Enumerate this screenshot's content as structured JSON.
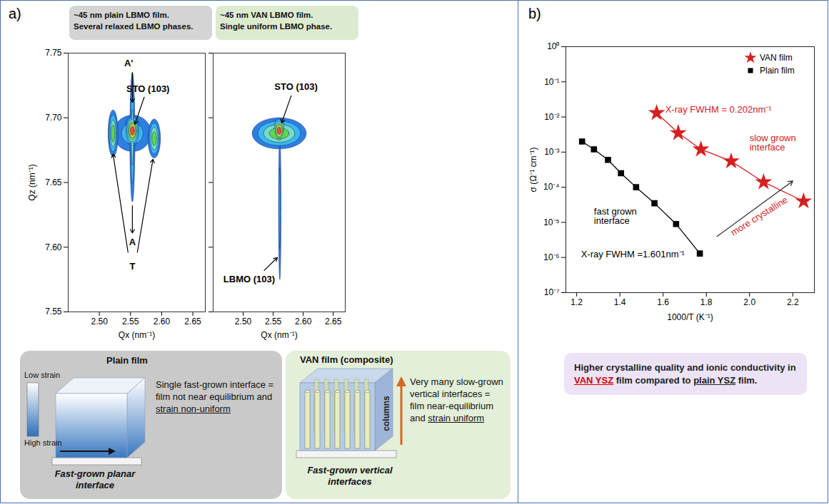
{
  "chart_data": [
    {
      "type": "contour",
      "title": "~45 nm plain LBMO film.",
      "subtitle": "Several relaxed LBMO phases.",
      "x_label": "Qx (nm⁻¹)",
      "y_label": "Qz (nm⁻¹)",
      "xlim": [
        2.45,
        2.67
      ],
      "ylim": [
        7.55,
        7.75
      ],
      "xticks": [
        {
          "value": 2.5,
          "label": "2.50"
        },
        2.55,
        {
          "value": 2.6,
          "label": "2.60"
        },
        2.65
      ],
      "yticks": [
        7.55,
        {
          "value": 7.6,
          "label": "7.60"
        },
        7.65,
        {
          "value": 7.7,
          "label": "7.70"
        },
        7.75
      ],
      "colors": [
        "#2e7fe0",
        "#3bb8ef",
        "#79dcc0",
        "#62d64e",
        "#d9e040",
        "#e8502e"
      ],
      "peaks": [
        {
          "x": 2.553,
          "y": 7.688,
          "rx": 0.03,
          "ry": 0.014,
          "level": 2
        },
        {
          "x": 2.553,
          "y": 7.685,
          "rx": 0.004,
          "ry": 0.05,
          "level": 3
        },
        {
          "x": 2.522,
          "y": 7.688,
          "rx": 0.008,
          "ry": 0.018,
          "level": 4
        },
        {
          "x": 2.588,
          "y": 7.684,
          "rx": 0.01,
          "ry": 0.015,
          "level": 4
        },
        {
          "x": 2.553,
          "y": 7.69,
          "rx": 0.012,
          "ry": 0.012,
          "level": 6
        }
      ],
      "annotations": [
        {
          "text": "A'",
          "x": 2.547,
          "y": 7.742,
          "arrows": [
            [
              2.553,
              7.735,
              2.553,
              7.712
            ]
          ]
        },
        {
          "text": "STO (103)",
          "x": 2.578,
          "y": 7.722,
          "arrows": [
            [
              2.572,
              7.716,
              2.557,
              7.695
            ]
          ]
        },
        {
          "text": "A",
          "x": 2.553,
          "y": 7.604,
          "arrows": [
            [
              2.553,
              7.632,
              2.553,
              7.611
            ]
          ]
        },
        {
          "text": "T",
          "x": 2.553,
          "y": 7.585,
          "arrows": [
            [
              2.546,
              7.596,
              2.522,
              7.672
            ],
            [
              2.561,
              7.596,
              2.586,
              7.668
            ]
          ]
        }
      ]
    },
    {
      "type": "contour",
      "title": "~45 nm VAN LBMO film.",
      "subtitle": "Single uniform LBMO phase.",
      "x_label": "Qx (nm⁻¹)",
      "xlim": [
        2.45,
        2.67
      ],
      "ylim": [
        7.55,
        7.75
      ],
      "xticks": [
        {
          "value": 2.5,
          "label": "2.50"
        },
        2.55,
        {
          "value": 2.6,
          "label": "2.60"
        },
        2.65
      ],
      "yticks": [
        7.55,
        {
          "value": 7.6,
          "label": "7.60"
        },
        7.65,
        {
          "value": 7.7,
          "label": "7.70"
        },
        7.75
      ],
      "tick_labels": "x",
      "colors": [
        "#2e7fe0",
        "#3bb8ef",
        "#79dcc0",
        "#62d64e",
        "#d9e040",
        "#e8502e"
      ],
      "peaks": [
        {
          "x": 2.56,
          "y": 7.688,
          "rx": 0.045,
          "ry": 0.012,
          "level": 4
        },
        {
          "x": 2.561,
          "y": 7.63,
          "rx": 0.002,
          "ry": 0.055,
          "level": 2
        },
        {
          "x": 2.56,
          "y": 7.69,
          "rx": 0.012,
          "ry": 0.01,
          "level": 6
        }
      ],
      "annotations": [
        {
          "text": "STO (103)",
          "x": 2.588,
          "y": 7.724,
          "arrows": [
            [
              2.58,
              7.717,
              2.564,
              7.696
            ]
          ]
        },
        {
          "text": "LBMO (103)",
          "x": 2.51,
          "y": 7.575,
          "arrows": [
            [
              2.535,
              7.582,
              2.557,
              7.592
            ]
          ]
        }
      ]
    },
    {
      "type": "line",
      "x_label": "1000/T (K⁻¹)",
      "y_label": "σ (Ω⁻¹ cm⁻¹)",
      "log": "y",
      "xlim": [
        1.15,
        2.3
      ],
      "ylim": [
        1e-07,
        1
      ],
      "xticks": [
        1.2,
        1.4,
        1.6,
        1.8,
        {
          "value": 2,
          "label": "2.0"
        },
        2.2
      ],
      "yticks": [
        {
          "value": 1e-07,
          "label": "10⁻⁷"
        },
        {
          "value": 1e-06,
          "label": "10⁻⁶"
        },
        {
          "value": 1e-05,
          "label": "10⁻⁵"
        },
        {
          "value": 0.0001,
          "label": "10⁻⁴"
        },
        {
          "value": 0.001,
          "label": "10⁻³"
        },
        {
          "value": 0.01,
          "label": "10⁻²"
        },
        {
          "value": 0.1,
          "label": "10⁻¹"
        },
        {
          "value": 1,
          "label": "10⁰"
        }
      ],
      "legend": "top-right",
      "series": [
        {
          "name": "VAN film",
          "color": "#d62020",
          "marker": "star",
          "x": [
            1.57,
            1.67,
            1.775,
            1.915,
            2.065,
            2.25
          ],
          "values": [
            0.013,
            0.0035,
            0.0012,
            0.00055,
            0.00014,
            4e-05
          ]
        },
        {
          "name": "Plain film",
          "color": "#000000",
          "marker": "square",
          "x": [
            1.225,
            1.28,
            1.345,
            1.405,
            1.475,
            1.56,
            1.66,
            1.77
          ],
          "values": [
            0.002,
            0.0012,
            0.0006,
            0.00025,
            0.0001,
            3.5e-05,
            9e-06,
            1.3e-06
          ]
        }
      ],
      "annotations": [
        {
          "text": "X-ray FWHM = 0.202nm⁻¹",
          "x": 1.61,
          "y": 0.016,
          "color": "#d62020"
        },
        {
          "text": "slow grown\ninterface",
          "x": 2.0,
          "y": 0.0018,
          "color": "#d62020"
        },
        {
          "text": "fast grown\ninterface",
          "x": 1.28,
          "y": 1.5e-05,
          "color": "#000000"
        },
        {
          "text": "X-ray FWHM =1.601nm⁻¹",
          "x": 1.22,
          "y": 1.2e-06,
          "color": "#000000"
        },
        {
          "text": "more crystalline",
          "x": 2.045,
          "y": 1.5e-05,
          "color": "#d62020",
          "arrows": [
            [
              1.85,
              4e-06,
              2.2,
              0.00015
            ]
          ]
        }
      ]
    }
  ],
  "panel_labels": [
    "a)",
    "b)"
  ],
  "schematics": [
    {
      "title": "Plain film",
      "scale_labels": [
        "Low strain",
        "High strain"
      ],
      "description": [
        {
          "text": "Single fast-grown interface = film not near equilibrium and "
        },
        {
          "text": "strain non-uniform",
          "style": "underline"
        }
      ],
      "caption": "Fast-grown planar interface"
    },
    {
      "title": "VAN film (composite)",
      "arrow_label": "columns",
      "description": [
        {
          "text": "Very many slow-grown vertical interfaces = film near-equilibrium and "
        },
        {
          "text": "strain uniform",
          "style": "underline"
        }
      ],
      "caption": "Fast-grown vertical interfaces"
    }
  ],
  "caption": [
    {
      "text": "Higher crystalline quality and ionic conductivity in "
    },
    {
      "text": "VAN YSZ",
      "style": "red-underline"
    },
    {
      "text": " film compared to "
    },
    {
      "text": "plain YSZ",
      "style": "underline"
    },
    {
      "text": " film."
    }
  ]
}
